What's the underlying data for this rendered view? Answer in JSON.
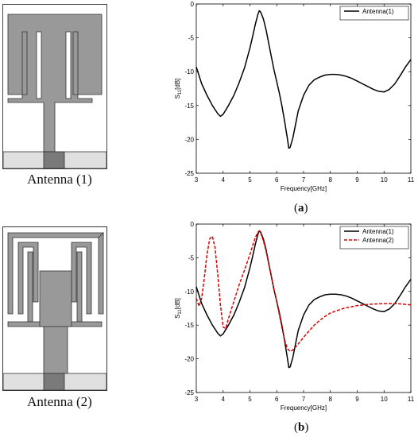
{
  "figure": {
    "antenna1_caption": "Antenna (1)",
    "antenna2_caption": "Antenna (2)",
    "panel_a_label": "a",
    "panel_b_label": "b"
  },
  "colors": {
    "antenna_metal": "#999999",
    "ground_plane": "#e0e0e0",
    "feed": "#7a7a7a",
    "series_antenna1": "#000000",
    "series_antenna2": "#dd0000"
  },
  "chart_data": [
    {
      "type": "line",
      "title": "",
      "xlabel": "Frequency[GHz]",
      "ylabel_main": "S",
      "ylabel_sub": "11",
      "ylabel_unit": "[dB]",
      "xlim": [
        3,
        11
      ],
      "ylim": [
        -25,
        0
      ],
      "xticks": [
        3,
        4,
        5,
        6,
        7,
        8,
        9,
        10,
        11
      ],
      "yticks": [
        0,
        -5,
        -10,
        -15,
        -20,
        -25
      ],
      "grid": false,
      "legend_position": "top-right",
      "series": [
        {
          "name": "Antenna(1)",
          "style": "solid",
          "x": [
            3.0,
            3.2,
            3.4,
            3.6,
            3.8,
            3.9,
            4.0,
            4.2,
            4.4,
            4.6,
            4.8,
            5.0,
            5.1,
            5.2,
            5.3,
            5.35,
            5.4,
            5.5,
            5.6,
            5.7,
            5.8,
            5.9,
            6.0,
            6.1,
            6.2,
            6.3,
            6.4,
            6.45,
            6.5,
            6.6,
            6.7,
            6.8,
            7.0,
            7.2,
            7.4,
            7.6,
            7.8,
            8.0,
            8.2,
            8.4,
            8.6,
            8.8,
            9.0,
            9.2,
            9.4,
            9.6,
            9.8,
            10.0,
            10.2,
            10.4,
            10.6,
            10.8,
            11.0
          ],
          "y": [
            -9.3,
            -11.8,
            -13.5,
            -15.0,
            -16.2,
            -16.6,
            -16.3,
            -15.0,
            -13.5,
            -11.6,
            -9.4,
            -6.5,
            -4.8,
            -3.0,
            -1.5,
            -1.0,
            -1.2,
            -2.2,
            -3.8,
            -5.8,
            -7.8,
            -9.8,
            -11.5,
            -13.2,
            -15.2,
            -17.5,
            -20.0,
            -21.3,
            -21.2,
            -19.8,
            -17.8,
            -15.8,
            -13.5,
            -12.0,
            -11.2,
            -10.8,
            -10.5,
            -10.4,
            -10.4,
            -10.5,
            -10.7,
            -11.0,
            -11.4,
            -11.8,
            -12.2,
            -12.6,
            -12.9,
            -13.0,
            -12.6,
            -11.8,
            -10.6,
            -9.3,
            -8.2
          ]
        }
      ]
    },
    {
      "type": "line",
      "title": "",
      "xlabel": "Frequency[GHz]",
      "ylabel_main": "S",
      "ylabel_sub": "11",
      "ylabel_unit": "[dB]",
      "xlim": [
        3,
        11
      ],
      "ylim": [
        -25,
        0
      ],
      "xticks": [
        3,
        4,
        5,
        6,
        7,
        8,
        9,
        10,
        11
      ],
      "yticks": [
        0,
        -5,
        -10,
        -15,
        -20,
        -25
      ],
      "grid": false,
      "legend_position": "top-right",
      "series": [
        {
          "name": "Antenna(1)",
          "style": "solid",
          "x": [
            3.0,
            3.2,
            3.4,
            3.6,
            3.8,
            3.9,
            4.0,
            4.2,
            4.4,
            4.6,
            4.8,
            5.0,
            5.1,
            5.2,
            5.3,
            5.35,
            5.4,
            5.5,
            5.6,
            5.7,
            5.8,
            5.9,
            6.0,
            6.1,
            6.2,
            6.3,
            6.4,
            6.45,
            6.5,
            6.6,
            6.7,
            6.8,
            7.0,
            7.2,
            7.4,
            7.6,
            7.8,
            8.0,
            8.2,
            8.4,
            8.6,
            8.8,
            9.0,
            9.2,
            9.4,
            9.6,
            9.8,
            10.0,
            10.2,
            10.4,
            10.6,
            10.8,
            11.0
          ],
          "y": [
            -9.3,
            -11.8,
            -13.5,
            -15.0,
            -16.2,
            -16.6,
            -16.3,
            -15.0,
            -13.5,
            -11.6,
            -9.4,
            -6.5,
            -4.8,
            -3.0,
            -1.5,
            -1.0,
            -1.2,
            -2.2,
            -3.8,
            -5.8,
            -7.8,
            -9.8,
            -11.5,
            -13.2,
            -15.2,
            -17.5,
            -20.0,
            -21.3,
            -21.2,
            -19.8,
            -17.8,
            -15.8,
            -13.5,
            -12.0,
            -11.2,
            -10.8,
            -10.5,
            -10.4,
            -10.4,
            -10.5,
            -10.7,
            -11.0,
            -11.4,
            -11.8,
            -12.2,
            -12.6,
            -12.9,
            -13.0,
            -12.6,
            -11.8,
            -10.6,
            -9.3,
            -8.2
          ]
        },
        {
          "name": "Antenna(2)",
          "style": "dashed",
          "x": [
            3.0,
            3.1,
            3.2,
            3.3,
            3.4,
            3.5,
            3.6,
            3.7,
            3.8,
            3.9,
            4.0,
            4.1,
            4.2,
            4.4,
            4.6,
            4.8,
            5.0,
            5.1,
            5.2,
            5.3,
            5.35,
            5.4,
            5.5,
            5.6,
            5.7,
            5.8,
            5.9,
            6.0,
            6.1,
            6.2,
            6.3,
            6.4,
            6.5,
            6.6,
            6.8,
            7.0,
            7.2,
            7.4,
            7.6,
            7.8,
            8.0,
            8.5,
            9.0,
            9.5,
            10.0,
            10.5,
            11.0
          ],
          "y": [
            -11.0,
            -12.2,
            -11.0,
            -8.0,
            -4.5,
            -2.2,
            -1.8,
            -3.5,
            -7.5,
            -12.0,
            -15.3,
            -15.5,
            -14.0,
            -11.5,
            -9.0,
            -6.8,
            -4.5,
            -3.2,
            -2.0,
            -1.2,
            -1.0,
            -1.3,
            -2.5,
            -4.0,
            -5.8,
            -7.8,
            -9.8,
            -11.5,
            -13.5,
            -15.5,
            -17.3,
            -18.5,
            -18.9,
            -18.7,
            -17.8,
            -16.8,
            -15.9,
            -15.0,
            -14.3,
            -13.7,
            -13.2,
            -12.5,
            -12.1,
            -11.9,
            -11.8,
            -11.8,
            -12.0
          ]
        }
      ]
    }
  ]
}
